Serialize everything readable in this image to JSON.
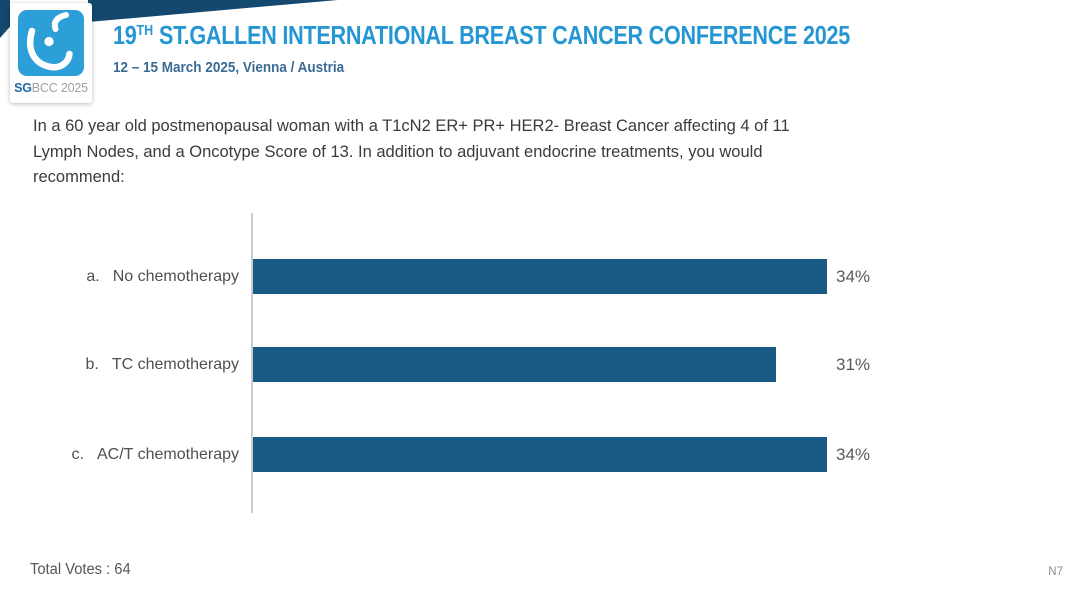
{
  "header": {
    "title_num": "19",
    "title_sup": "TH",
    "title_rest": " ST.GALLEN INTERNATIONAL BREAST CANCER CONFERENCE 2025",
    "subtitle": "12 – 15 March 2025, Vienna / Austria",
    "logo": {
      "icon": "sgbcc-breast-logo",
      "caption_bold": "SG",
      "caption_rest": "BCC 2025"
    }
  },
  "question_lines": {
    "line1": "In a 60 year old postmenopausal woman with a T1cN2 ER+ PR+ HER2- Breast Cancer affecting 4 of 11",
    "line2": "Lymph Nodes, and a Oncotype Score of 13. In addition to adjuvant endocrine treatments, you would",
    "line3": "recommend:"
  },
  "chart_data": {
    "type": "bar",
    "orientation": "horizontal",
    "prefixes": [
      "a.",
      "b.",
      "c."
    ],
    "categories": [
      "No chemotherapy",
      "TC chemotherapy",
      "AC/T chemotherapy"
    ],
    "values": [
      34,
      31,
      34
    ],
    "value_labels": [
      "34%",
      "31%",
      "34%"
    ],
    "xlim": [
      0,
      40
    ],
    "grid": false,
    "legend_position": "none",
    "bar_color": "#175a84",
    "title": ""
  },
  "footer": {
    "total_votes": "Total Votes : 64",
    "slide_code": "N7"
  },
  "colors": {
    "accent_blue": "#2496d4",
    "navy_decor": "#14486f",
    "subtitle_blue": "#3a6b95",
    "bar": "#175a84",
    "logo_tile_blue": "#2d9fd8",
    "text_gray": "#3b3b3b"
  }
}
